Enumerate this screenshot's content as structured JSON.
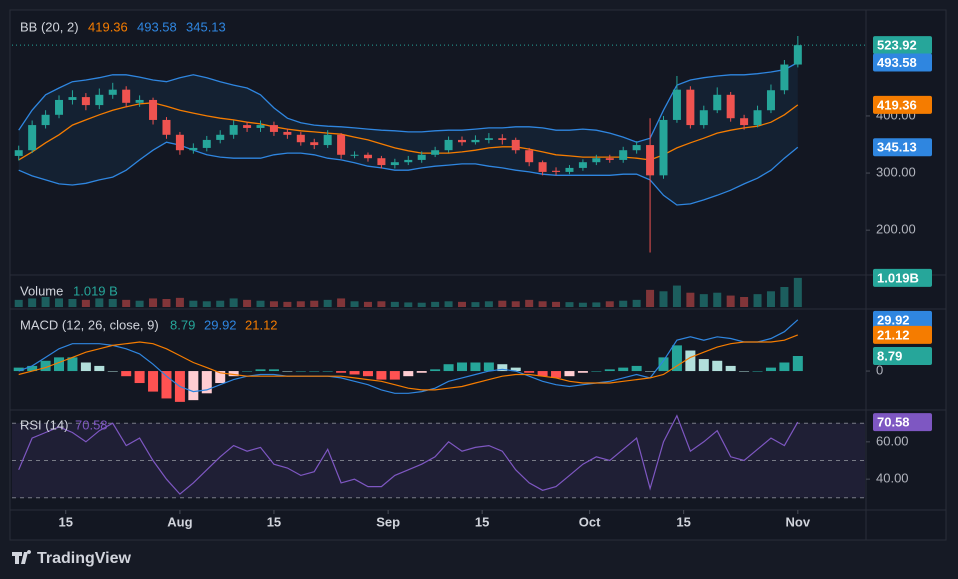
{
  "chart_data": [
    {
      "type": "candlestick",
      "legend_title": "BB (20, 2)",
      "x": [
        7,
        9,
        11,
        13,
        15,
        17,
        19,
        21,
        23,
        25,
        27,
        29,
        31,
        33,
        35,
        37,
        39,
        41,
        43,
        45,
        47,
        49,
        51,
        53,
        55,
        57,
        59,
        61,
        63,
        65,
        67,
        69,
        71,
        73,
        75,
        77,
        79,
        81,
        83,
        85,
        87,
        89,
        91,
        93,
        95,
        97,
        99,
        101,
        103,
        105,
        107,
        109,
        111,
        113,
        115,
        117,
        119,
        121,
        123
      ],
      "open": [
        330,
        340,
        384,
        402,
        428,
        433,
        419,
        437,
        446,
        423,
        428,
        393,
        367,
        340,
        344,
        358,
        367,
        384,
        379,
        384,
        372,
        367,
        354,
        349,
        367,
        332,
        332,
        326,
        314,
        319,
        323,
        332,
        340,
        358,
        354,
        358,
        361,
        358,
        340,
        319,
        304,
        302,
        309,
        319,
        326,
        323,
        340,
        349,
        296,
        393,
        446,
        384,
        410,
        437,
        396,
        384,
        410,
        445,
        490
      ],
      "high": [
        348,
        392,
        410,
        436,
        445,
        440,
        448,
        458,
        452,
        436,
        432,
        398,
        372,
        352,
        365,
        375,
        392,
        390,
        392,
        390,
        378,
        372,
        360,
        375,
        370,
        338,
        336,
        330,
        325,
        330,
        338,
        346,
        364,
        364,
        366,
        370,
        368,
        362,
        344,
        322,
        310,
        314,
        324,
        332,
        332,
        346,
        356,
        396,
        400,
        470,
        452,
        418,
        450,
        442,
        402,
        418,
        455,
        498,
        540
      ],
      "low": [
        322,
        335,
        378,
        396,
        420,
        410,
        412,
        430,
        415,
        416,
        385,
        360,
        332,
        334,
        338,
        352,
        360,
        372,
        372,
        365,
        360,
        348,
        342,
        344,
        325,
        326,
        320,
        308,
        308,
        314,
        318,
        328,
        336,
        348,
        350,
        352,
        350,
        334,
        312,
        296,
        296,
        298,
        304,
        314,
        318,
        318,
        334,
        161,
        290,
        388,
        378,
        378,
        405,
        390,
        376,
        380,
        405,
        438,
        485
      ],
      "close": [
        340,
        384,
        402,
        428,
        433,
        419,
        437,
        446,
        423,
        428,
        393,
        367,
        340,
        344,
        358,
        367,
        384,
        379,
        384,
        372,
        367,
        354,
        349,
        367,
        332,
        332,
        326,
        314,
        319,
        323,
        332,
        340,
        358,
        354,
        358,
        361,
        358,
        340,
        319,
        302,
        302,
        309,
        319,
        326,
        323,
        340,
        349,
        296,
        393,
        446,
        384,
        410,
        437,
        396,
        384,
        410,
        445,
        490,
        523.92
      ],
      "up_color": "#26a69a",
      "down_color": "#ef5350",
      "bands": {
        "upper": [
          375,
          410,
          437,
          449,
          460,
          463,
          467,
          472,
          472,
          468,
          463,
          460,
          467,
          472,
          467,
          460,
          454,
          449,
          437,
          414,
          396,
          388,
          384,
          382,
          381,
          379,
          377,
          375,
          374,
          372,
          372,
          374,
          375,
          375,
          377,
          379,
          379,
          381,
          381,
          379,
          375,
          375,
          377,
          375,
          370,
          363,
          354,
          361,
          410,
          454,
          463,
          467,
          470,
          472,
          472,
          474,
          477,
          481,
          493.58
        ],
        "middle": [
          323,
          337,
          353,
          367,
          384,
          393,
          402,
          410,
          416,
          421,
          423,
          417,
          410,
          405,
          400,
          396,
          393,
          389,
          386,
          381,
          377,
          374,
          372,
          370,
          368,
          363,
          358,
          351,
          344,
          339,
          335,
          335,
          335,
          337,
          340,
          344,
          346,
          346,
          342,
          337,
          332,
          330,
          328,
          328,
          328,
          328,
          326,
          323,
          332,
          344,
          353,
          361,
          370,
          375,
          379,
          382,
          389,
          402,
          419.36
        ],
        "lower": [
          305,
          295,
          288,
          281,
          279,
          282,
          288,
          293,
          305,
          323,
          340,
          354,
          349,
          340,
          332,
          328,
          326,
          326,
          326,
          332,
          335,
          335,
          332,
          326,
          323,
          318,
          312,
          309,
          305,
          305,
          309,
          312,
          314,
          316,
          316,
          312,
          309,
          305,
          302,
          298,
          296,
          296,
          296,
          296,
          296,
          298,
          298,
          288,
          261,
          244,
          246,
          253,
          261,
          270,
          281,
          291,
          305,
          326,
          345.13
        ],
        "upper_color": "#2f86e0",
        "middle_color": "#f57c00",
        "lower_color": "#2f86e0",
        "fill": "rgba(33,150,243,0.08)"
      },
      "ylim": [
        125,
        582
      ],
      "yticks": [
        {
          "value": 200,
          "label": "200.00"
        },
        {
          "value": 300,
          "label": "300.00"
        },
        {
          "value": 400,
          "label": "400.00"
        }
      ],
      "xlim": [
        6,
        133
      ],
      "xticks": [
        {
          "value": 14,
          "label": "15"
        },
        {
          "value": 31,
          "label": "Aug"
        },
        {
          "value": 45,
          "label": "15"
        },
        {
          "value": 62,
          "label": "Sep"
        },
        {
          "value": 76,
          "label": "15"
        },
        {
          "value": 92,
          "label": "Oct"
        },
        {
          "value": 106,
          "label": "15"
        },
        {
          "value": 123,
          "label": "Nov"
        }
      ]
    },
    {
      "type": "bar",
      "legend_title": "Volume",
      "values": [
        0.25,
        0.3,
        0.35,
        0.3,
        0.28,
        0.25,
        0.3,
        0.28,
        0.25,
        0.22,
        0.3,
        0.28,
        0.32,
        0.22,
        0.2,
        0.22,
        0.3,
        0.25,
        0.22,
        0.2,
        0.18,
        0.2,
        0.22,
        0.25,
        0.3,
        0.2,
        0.18,
        0.2,
        0.18,
        0.16,
        0.15,
        0.18,
        0.2,
        0.18,
        0.17,
        0.2,
        0.22,
        0.2,
        0.25,
        0.2,
        0.18,
        0.17,
        0.15,
        0.16,
        0.2,
        0.22,
        0.25,
        0.6,
        0.55,
        0.75,
        0.5,
        0.45,
        0.5,
        0.4,
        0.35,
        0.45,
        0.55,
        0.7,
        1.019
      ],
      "last_label": "1.019 B",
      "tag_label": "1.019B",
      "color": "#26a69a",
      "ylim": [
        0,
        1.05
      ]
    },
    {
      "type": "line",
      "legend_title": "MACD (12, 26, close, 9)",
      "histogram": {
        "values": [
          2,
          3,
          6,
          8,
          8,
          5,
          3,
          0,
          -3,
          -7,
          -12,
          -16,
          -18,
          -17,
          -13,
          -7,
          -3,
          0,
          1,
          1,
          0,
          0,
          0,
          0,
          -1,
          -2,
          -3,
          -5,
          -5,
          -3,
          -1,
          1,
          4,
          5,
          5,
          5,
          4,
          2,
          -1,
          -3,
          -4,
          -3,
          -1,
          0,
          1,
          2,
          3,
          0,
          8,
          15,
          12,
          7,
          6,
          3,
          0,
          0,
          2,
          5,
          8.79
        ],
        "colors": [
          "#26a69a",
          "#b2dfdb",
          "#ff5252",
          "#ffcdd2"
        ]
      },
      "series": [
        {
          "color": "#2f86e0",
          "values": [
            0,
            3,
            8,
            13,
            16,
            16,
            16,
            15,
            13,
            10,
            4,
            -3,
            -9,
            -12,
            -11,
            -8,
            -5,
            -3,
            -2,
            -2,
            -3,
            -3,
            -3,
            -3,
            -4,
            -6,
            -8,
            -11,
            -13,
            -13,
            -12,
            -10,
            -6,
            -4,
            -2,
            0,
            1,
            0,
            -3,
            -6,
            -8,
            -9,
            -8,
            -7,
            -6,
            -4,
            -2,
            -4,
            6,
            18,
            20,
            18,
            20,
            19,
            17,
            17,
            19,
            23,
            29.92
          ]
        },
        {
          "color": "#f57c00",
          "values": [
            -2,
            0,
            2,
            5,
            8,
            11,
            13,
            15,
            16,
            17,
            16,
            13,
            9,
            5,
            2,
            -1,
            -2,
            -3,
            -3,
            -3,
            -3,
            -3,
            -3,
            -3,
            -3,
            -4,
            -5,
            -6,
            -8,
            -10,
            -11,
            -11,
            -10,
            -9,
            -7,
            -5,
            -3,
            -2,
            -2,
            -3,
            -4,
            -6,
            -7,
            -7,
            -7,
            -6,
            -5,
            -4,
            -2,
            3,
            8,
            11,
            14,
            16,
            17,
            17,
            17,
            18,
            21.12
          ]
        }
      ],
      "ylim": [
        -21,
        34.5
      ],
      "yticks": [
        0
      ]
    },
    {
      "type": "line",
      "legend_title": "RSI (14)",
      "series": [
        {
          "color": "#7e57c2",
          "values": [
            45,
            62,
            65,
            68,
            65,
            60,
            66,
            70,
            58,
            62,
            50,
            40,
            32,
            38,
            45,
            52,
            58,
            55,
            57,
            48,
            46,
            42,
            44,
            56,
            38,
            40,
            36,
            36,
            42,
            45,
            48,
            52,
            60,
            55,
            57,
            58,
            55,
            45,
            38,
            34,
            36,
            42,
            48,
            52,
            50,
            56,
            62,
            35,
            60,
            74,
            55,
            60,
            66,
            52,
            50,
            56,
            62,
            58,
            70.58
          ]
        }
      ],
      "levels": [
        30,
        50,
        70
      ],
      "band_fill": "rgba(126,87,194,0.12)",
      "ylim": [
        24,
        76
      ],
      "yticks": [
        {
          "value": 40,
          "label": "40.00"
        },
        {
          "value": 60,
          "label": "60.00"
        }
      ]
    }
  ],
  "footer": {
    "brand": "TradingView"
  }
}
